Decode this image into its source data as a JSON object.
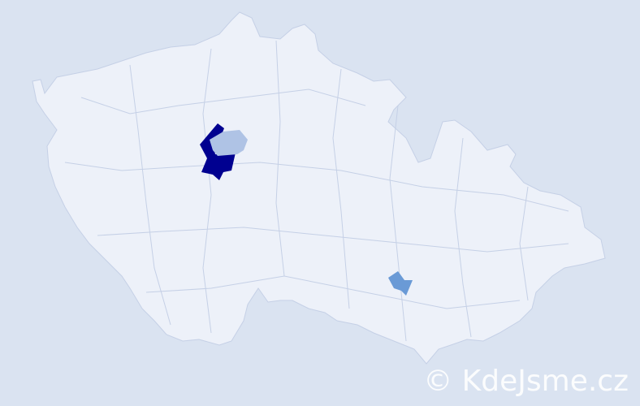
{
  "map": {
    "colors": {
      "background": "#dae3f1",
      "land": "#edf1f9",
      "border": "#c5d0e6",
      "highlight_dark": "#000090",
      "highlight_light": "#afc3e5",
      "highlight_mid": "#6a9ad6"
    }
  },
  "watermark": "© KdeJsme.cz"
}
